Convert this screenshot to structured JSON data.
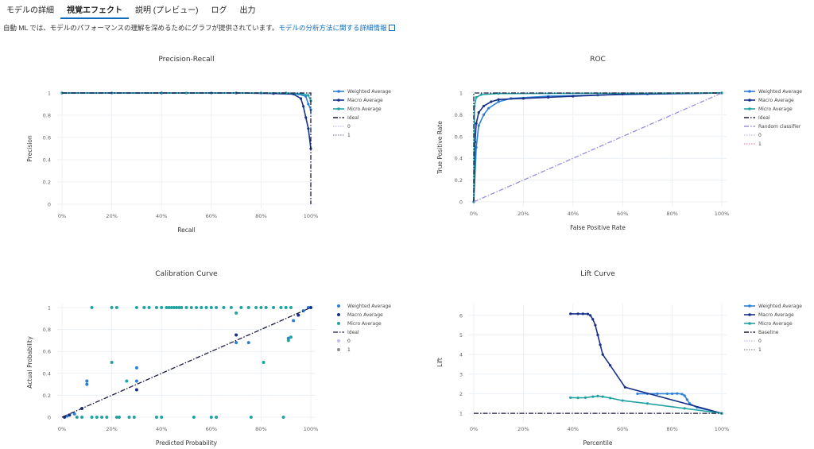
{
  "tabs": [
    {
      "label": "モデルの詳細",
      "active": false
    },
    {
      "label": "視覚エフェクト",
      "active": true
    },
    {
      "label": "説明 (プレビュー)",
      "active": false
    },
    {
      "label": "ログ",
      "active": false
    },
    {
      "label": "出力",
      "active": false
    }
  ],
  "description": {
    "text": "自動 ML では、モデルのパフォーマンスの理解を深めるためにグラフが提供されています。",
    "link_text": "モデルの分析方法に関する詳細情報",
    "link_icon": "external-link-icon"
  },
  "colors": {
    "weighted": "#2b7fd8",
    "macro": "#17318a",
    "micro": "#21a3a3",
    "ideal": "#1a1a40",
    "random": "#9b8fdc",
    "class0": "#c7b8f0",
    "class1": "#e88aa0",
    "accent": "#0f6cbd"
  },
  "chart_data": [
    {
      "type": "line",
      "title": "Precision-Recall",
      "xlabel": "Recall",
      "ylabel": "Precision",
      "xlim": [
        0,
        1
      ],
      "ylim": [
        0,
        1
      ],
      "x_ticks": [
        "0%",
        "20%",
        "40%",
        "60%",
        "80%",
        "100%"
      ],
      "y_ticks": [
        "0",
        "0.2",
        "0.4",
        "0.6",
        "0.8",
        "1"
      ],
      "grid": true,
      "legend_position": "right",
      "legend": [
        "Weighted Average",
        "Macro Average",
        "Micro Average",
        "Ideal",
        "0",
        "1"
      ],
      "series": [
        {
          "name": "Weighted Average",
          "style": "solid-markers",
          "color": "weighted",
          "points": [
            [
              0,
              1
            ],
            [
              0.2,
              1
            ],
            [
              0.4,
              1
            ],
            [
              0.6,
              1
            ],
            [
              0.8,
              1
            ],
            [
              0.9,
              0.995
            ],
            [
              0.95,
              0.99
            ],
            [
              0.98,
              0.97
            ],
            [
              0.99,
              0.9
            ],
            [
              1,
              0.85
            ]
          ]
        },
        {
          "name": "Macro Average",
          "style": "solid-markers",
          "color": "macro",
          "points": [
            [
              0,
              1
            ],
            [
              0.4,
              1
            ],
            [
              0.7,
              1
            ],
            [
              0.85,
              0.995
            ],
            [
              0.93,
              0.99
            ],
            [
              0.96,
              0.95
            ],
            [
              0.97,
              0.88
            ],
            [
              0.98,
              0.78
            ],
            [
              0.99,
              0.68
            ],
            [
              1,
              0.5
            ]
          ]
        },
        {
          "name": "Micro Average",
          "style": "solid-markers",
          "color": "micro",
          "points": [
            [
              0,
              1
            ],
            [
              0.5,
              1
            ],
            [
              0.9,
              1
            ],
            [
              0.96,
              0.995
            ],
            [
              0.99,
              0.98
            ],
            [
              1,
              0.93
            ]
          ]
        },
        {
          "name": "Ideal",
          "style": "dashdot",
          "color": "ideal",
          "points": [
            [
              0,
              1
            ],
            [
              1,
              1
            ],
            [
              1,
              0
            ]
          ]
        }
      ]
    },
    {
      "type": "line",
      "title": "ROC",
      "xlabel": "False Positive Rate",
      "ylabel": "True Positive Rate",
      "xlim": [
        0,
        1
      ],
      "ylim": [
        0,
        1
      ],
      "x_ticks": [
        "0%",
        "20%",
        "40%",
        "60%",
        "80%",
        "100%"
      ],
      "y_ticks": [
        "0",
        "0.2",
        "0.4",
        "0.6",
        "0.8",
        "1"
      ],
      "grid": true,
      "legend_position": "right",
      "legend": [
        "Weighted Average",
        "Macro Average",
        "Micro Average",
        "Ideal",
        "Random classifier",
        "0",
        "1"
      ],
      "series": [
        {
          "name": "Weighted Average",
          "style": "solid-markers",
          "color": "weighted",
          "points": [
            [
              0,
              0
            ],
            [
              0.01,
              0.5
            ],
            [
              0.02,
              0.7
            ],
            [
              0.04,
              0.8
            ],
            [
              0.06,
              0.86
            ],
            [
              0.1,
              0.92
            ],
            [
              0.15,
              0.95
            ],
            [
              0.3,
              0.97
            ],
            [
              0.5,
              0.98
            ],
            [
              0.7,
              0.99
            ],
            [
              1,
              1
            ]
          ]
        },
        {
          "name": "Macro Average",
          "style": "solid-markers",
          "color": "macro",
          "points": [
            [
              0,
              0
            ],
            [
              0.005,
              0.55
            ],
            [
              0.01,
              0.72
            ],
            [
              0.02,
              0.82
            ],
            [
              0.04,
              0.88
            ],
            [
              0.07,
              0.92
            ],
            [
              0.1,
              0.94
            ],
            [
              0.2,
              0.95
            ],
            [
              0.3,
              0.96
            ],
            [
              0.4,
              0.97
            ],
            [
              0.6,
              0.99
            ],
            [
              1,
              1
            ]
          ]
        },
        {
          "name": "Micro Average",
          "style": "solid-markers",
          "color": "micro",
          "points": [
            [
              0,
              0
            ],
            [
              0.003,
              0.88
            ],
            [
              0.01,
              0.96
            ],
            [
              0.03,
              0.985
            ],
            [
              0.1,
              0.995
            ],
            [
              1,
              1
            ]
          ]
        },
        {
          "name": "Ideal",
          "style": "dashdot",
          "color": "ideal",
          "points": [
            [
              0,
              0
            ],
            [
              0,
              1
            ],
            [
              1,
              1
            ]
          ]
        },
        {
          "name": "Random classifier",
          "style": "dashdot",
          "color": "random",
          "points": [
            [
              0,
              0
            ],
            [
              1,
              1
            ]
          ]
        }
      ]
    },
    {
      "type": "scatter",
      "title": "Calibration Curve",
      "xlabel": "Predicted Probability",
      "ylabel": "Actual Probability",
      "xlim": [
        0,
        1
      ],
      "ylim": [
        0,
        1
      ],
      "x_ticks": [
        "0%",
        "20%",
        "40%",
        "60%",
        "80%",
        "100%"
      ],
      "y_ticks": [
        "0",
        "0.2",
        "0.4",
        "0.6",
        "0.8",
        "1"
      ],
      "grid": true,
      "legend_position": "right",
      "legend": [
        "Weighted Average",
        "Macro Average",
        "Micro Average",
        "Ideal",
        "0",
        "1"
      ],
      "series": [
        {
          "name": "Weighted Average",
          "style": "markers",
          "color": "weighted",
          "points": [
            [
              0.02,
              0.01
            ],
            [
              0.05,
              0.03
            ],
            [
              0.1,
              0.3
            ],
            [
              0.1,
              0.33
            ],
            [
              0.3,
              0.45
            ],
            [
              0.3,
              0.33
            ],
            [
              0.7,
              0.68
            ],
            [
              0.75,
              0.68
            ],
            [
              0.91,
              0.72
            ],
            [
              0.93,
              0.88
            ],
            [
              0.97,
              0.97
            ],
            [
              0.99,
              1
            ]
          ]
        },
        {
          "name": "Macro Average",
          "style": "markers",
          "color": "macro",
          "points": [
            [
              0.01,
              0
            ],
            [
              0.03,
              0.02
            ],
            [
              0.08,
              0.08
            ],
            [
              0.3,
              0.25
            ],
            [
              0.7,
              0.75
            ],
            [
              0.95,
              0.93
            ],
            [
              1,
              1
            ]
          ]
        },
        {
          "name": "Micro Average",
          "style": "markers",
          "color": "micro",
          "points": [
            [
              0.12,
              1
            ],
            [
              0.2,
              1
            ],
            [
              0.22,
              1
            ],
            [
              0.3,
              1
            ],
            [
              0.33,
              1
            ],
            [
              0.35,
              1
            ],
            [
              0.38,
              1
            ],
            [
              0.4,
              1
            ],
            [
              0.42,
              1
            ],
            [
              0.43,
              1
            ],
            [
              0.44,
              1
            ],
            [
              0.45,
              1
            ],
            [
              0.46,
              1
            ],
            [
              0.47,
              1
            ],
            [
              0.48,
              1
            ],
            [
              0.5,
              1
            ],
            [
              0.52,
              1
            ],
            [
              0.54,
              1
            ],
            [
              0.56,
              1
            ],
            [
              0.58,
              1
            ],
            [
              0.6,
              1
            ],
            [
              0.62,
              1
            ],
            [
              0.65,
              1
            ],
            [
              0.68,
              1
            ],
            [
              0.72,
              1
            ],
            [
              0.75,
              1
            ],
            [
              0.78,
              1
            ],
            [
              0.8,
              1
            ],
            [
              0.82,
              1
            ],
            [
              0.85,
              1
            ],
            [
              0.88,
              1
            ],
            [
              0.9,
              1
            ],
            [
              0.92,
              1
            ],
            [
              0.2,
              0.5
            ],
            [
              0.26,
              0.33
            ],
            [
              0.7,
              0.95
            ],
            [
              0.81,
              0.5
            ],
            [
              0.91,
              0.7
            ],
            [
              0.92,
              0.73
            ],
            [
              0.12,
              0
            ],
            [
              0.14,
              0
            ],
            [
              0.16,
              0
            ],
            [
              0.18,
              0
            ],
            [
              0.22,
              0
            ],
            [
              0.23,
              0
            ],
            [
              0.27,
              0
            ],
            [
              0.29,
              0
            ],
            [
              0.38,
              0
            ],
            [
              0.4,
              0
            ],
            [
              0.53,
              0
            ],
            [
              0.6,
              0
            ],
            [
              0.62,
              0
            ],
            [
              0.76,
              0
            ],
            [
              0.89,
              0
            ],
            [
              0.06,
              0
            ],
            [
              0.08,
              0
            ]
          ]
        },
        {
          "name": "Ideal",
          "style": "dashdot",
          "color": "ideal",
          "points": [
            [
              0,
              0
            ],
            [
              1,
              1
            ]
          ]
        }
      ]
    },
    {
      "type": "line",
      "title": "Lift Curve",
      "xlabel": "Percentile",
      "ylabel": "Lift",
      "xlim": [
        0,
        1
      ],
      "ylim": [
        0.8,
        6.4
      ],
      "x_ticks": [
        "0%",
        "20%",
        "40%",
        "60%",
        "80%",
        "100%"
      ],
      "y_ticks": [
        "1",
        "2",
        "3",
        "4",
        "5",
        "6"
      ],
      "grid": true,
      "legend_position": "right",
      "legend": [
        "Weighted Average",
        "Macro Average",
        "Micro Average",
        "Baseline",
        "0",
        "1"
      ],
      "series": [
        {
          "name": "Weighted Average",
          "style": "solid-markers",
          "color": "weighted",
          "points": [
            [
              0.66,
              2
            ],
            [
              0.7,
              2
            ],
            [
              0.74,
              2
            ],
            [
              0.78,
              2
            ],
            [
              0.8,
              2
            ],
            [
              0.82,
              2.01
            ],
            [
              0.84,
              1.98
            ],
            [
              0.85,
              1.9
            ],
            [
              0.86,
              1.7
            ],
            [
              0.87,
              1.5
            ],
            [
              0.9,
              1.3
            ],
            [
              1,
              1
            ]
          ]
        },
        {
          "name": "Macro Average",
          "style": "solid-markers",
          "color": "macro",
          "points": [
            [
              0.39,
              6.08
            ],
            [
              0.42,
              6.08
            ],
            [
              0.44,
              6.08
            ],
            [
              0.46,
              6.07
            ],
            [
              0.47,
              6.0
            ],
            [
              0.48,
              5.8
            ],
            [
              0.49,
              5.5
            ],
            [
              0.5,
              5.0
            ],
            [
              0.51,
              4.5
            ],
            [
              0.52,
              4.0
            ],
            [
              0.55,
              3.45
            ],
            [
              0.61,
              2.33
            ],
            [
              1,
              1
            ]
          ]
        },
        {
          "name": "Micro Average",
          "style": "solid-markers",
          "color": "micro",
          "points": [
            [
              0.39,
              1.8
            ],
            [
              0.42,
              1.79
            ],
            [
              0.45,
              1.8
            ],
            [
              0.48,
              1.85
            ],
            [
              0.5,
              1.88
            ],
            [
              0.52,
              1.85
            ],
            [
              0.55,
              1.78
            ],
            [
              0.6,
              1.65
            ],
            [
              0.7,
              1.5
            ],
            [
              0.85,
              1.25
            ],
            [
              1,
              1
            ]
          ]
        },
        {
          "name": "Baseline",
          "style": "dashdot",
          "color": "ideal",
          "points": [
            [
              0,
              1
            ],
            [
              1,
              1
            ]
          ]
        }
      ]
    }
  ]
}
